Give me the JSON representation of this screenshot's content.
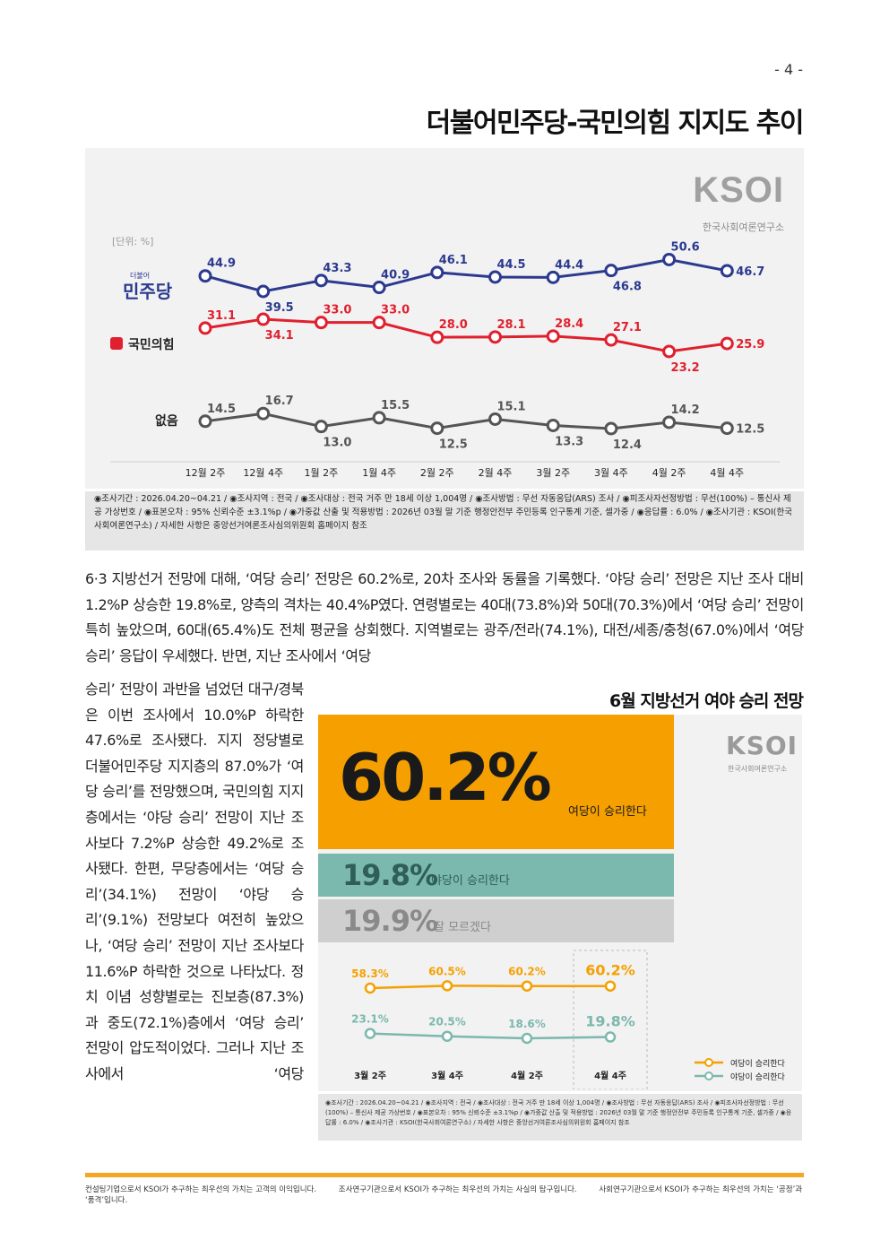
{
  "page_number": "- 4 -",
  "chart1": {
    "title": "더불어민주당-국민의힘 지지도 추이",
    "logo": "KSOI",
    "logo_sub": "한국사회여론연구소",
    "unit": "[단위: %]",
    "label_colors": {
      "더불어민주당": "#2b3a8f",
      "국민의힘": "#e0202e",
      "없음": "#555555"
    }
  },
  "chart_data": [
    {
      "type": "line",
      "x": [
        "12월 2주",
        "12월 4주",
        "1월 2주",
        "1월 4주",
        "2월 2주",
        "2월 4주",
        "3월 2주",
        "3월 4주",
        "4월 2주",
        "4월 4주"
      ],
      "series": [
        {
          "name": "더불어민주당",
          "values": [
            44.9,
            39.5,
            43.3,
            40.9,
            46.1,
            44.5,
            44.4,
            46.8,
            50.6,
            46.7
          ],
          "color": "#2b3a8f",
          "label": "민주당",
          "tag": "더불어"
        },
        {
          "name": "국민의힘",
          "values": [
            31.1,
            34.1,
            33.0,
            33.0,
            28.0,
            28.1,
            28.4,
            27.1,
            23.2,
            25.9
          ],
          "color": "#e0202e",
          "label": "국민의힘"
        },
        {
          "name": "없음",
          "values": [
            14.5,
            16.7,
            13.0,
            15.5,
            12.5,
            15.1,
            13.3,
            12.4,
            14.2,
            12.5
          ],
          "color": "#555555",
          "label": "없음"
        }
      ],
      "value_labels": {
        "더불어민주당": [
          "44.9",
          "39.5",
          "43.3",
          "40.9",
          "46.1",
          "44.5",
          "44.4",
          "46.8",
          "50.6",
          "46.7"
        ],
        "국민의힘": [
          "31.1",
          "34.1",
          "33.0",
          "33.0",
          "28.0",
          "28.1",
          "28.4",
          "27.1",
          "23.2",
          "25.9"
        ],
        "없음": [
          "14.5",
          "16.7",
          "13.0",
          "15.5",
          "12.5",
          "15.1",
          "13.3",
          "12.4",
          "14.2",
          "12.5"
        ]
      }
    },
    {
      "type": "line",
      "title": "6월 지방선거 여야 승리 전망",
      "x": [
        "3월 2주",
        "3월 4주",
        "4월 2주",
        "4월 4주"
      ],
      "series": [
        {
          "name": "여당이 승리한다",
          "values": [
            58.3,
            60.5,
            60.2,
            60.2
          ],
          "color": "#f5a000"
        },
        {
          "name": "야당이 승리한다",
          "values": [
            23.1,
            20.5,
            18.6,
            19.8
          ],
          "color": "#7bb8ad"
        }
      ],
      "value_labels": {
        "여당이 승리한다": [
          "58.3%",
          "60.5%",
          "60.2%",
          "60.2%"
        ],
        "야당이 승리한다": [
          "23.1%",
          "20.5%",
          "18.6%",
          "19.8%"
        ]
      },
      "summary": [
        {
          "value": "60.2%",
          "label": "여당이 승리한다"
        },
        {
          "value": "19.8%",
          "label": "야당이 승리한다"
        },
        {
          "value": "19.9%",
          "label": "잘 모르겠다"
        }
      ],
      "legend": "bottom-right"
    }
  ],
  "meta1": "◉조사기간 : 2026.04.20~04.21 / ◉조사지역 : 전국 / ◉조사대상 : 전국 거주 만 18세 이상 1,004명 / ◉조사방법 : 무선 자동응답(ARS) 조사 / ◉피조사자선정방법 : 무선(100%) – 통신사 제공 가상번호 / ◉표본오차 : 95% 신뢰수준 ±3.1%p / ◉가중값 산출 및 적용방법 : 2026년 03월 말 기준 행정안전부 주민등록 인구통계 기준, 셀가중 / ◉응답률 : 6.0% / ◉조사기관 : KSOI(한국사회여론연구소) / 자세한 사항은 중앙선거여론조사심의위원회 홈페이지 참조",
  "meta2": "◉조사기간 : 2026.04.20~04.21 / ◉조사지역 : 전국 / ◉조사대상 : 전국 거주 만 18세 이상 1,004명 / ◉조사방법 : 무선 자동응답(ARS) 조사 / ◉피조사자선정방법 : 무선(100%) – 통신사 제공 가상번호 / ◉표본오차 : 95% 신뢰수준 ±3.1%p / ◉가중값 산출 및 적용방법 : 2026년 03월 말 기준 행정안전부 주민등록 인구통계 기준, 셀가중 / ◉응답률 : 6.0% / ◉조사기관 : KSOI(한국사회여론연구소) / 자세한 사항은 중앙선거여론조사심의위원회 홈페이지 참조",
  "body_text_1": "6·3 지방선거 전망에 대해, ‘여당 승리’ 전망은 60.2%로, 20차 조사와 동률을 기록했다. ‘야당 승리’ 전망은 지난 조사 대비 1.2%P 상승한 19.8%로, 양측의 격차는 40.4%P였다. 연령별로는 40대(73.8%)와 50대(70.3%)에서 ‘여당 승리’ 전망이 특히 높았으며, 60대(65.4%)도 전체 평균을 상회했다. 지역별로는 광주/전라(74.1%), 대전/세종/충청(67.0%)에서 ‘여당 승리’ 응답이 우세했다. 반면, 지난 조사에서 ‘여당",
  "body_text_2": "승리’ 전망이 과반을 넘었던 대구/경북은 이번 조사에서 10.0%P 하락한 47.6%로 조사됐다. 지지 정당별로 더불어민주당 지지층의 87.0%가 ‘여당 승리’를 전망했으며, 국민의힘 지지층에서는 ‘야당 승리’ 전망이 지난 조사보다 7.2%P 상승한 49.2%로 조사됐다. 한편, 무당층에서는 ‘여당 승리’(34.1%) 전망이 ‘야당 승리’(9.1%) 전망보다 여전히 높았으나, ‘여당 승리’ 전망이 지난 조사보다 11.6%P 하락한 것으로 나타났다. 정치 이념 성향별로는 진보층(87.3%)과 중도(72.1%)층에서 ‘여당 승리’ 전망이 압도적이었다. 그러나 지난 조사에서 ‘여당",
  "footer": [
    "컨설팅기업으로서 KSOI가 추구하는 최우선의 가치는 고객의 이익입니다.",
    "조사연구기관으로서 KSOI가 추구하는 최우선의 가치는 사실의 탐구입니다.",
    "사회연구기관으로서 KSOI가 추구하는 최우선의 가치는 ‘공정’과 ‘품격’입니다."
  ]
}
